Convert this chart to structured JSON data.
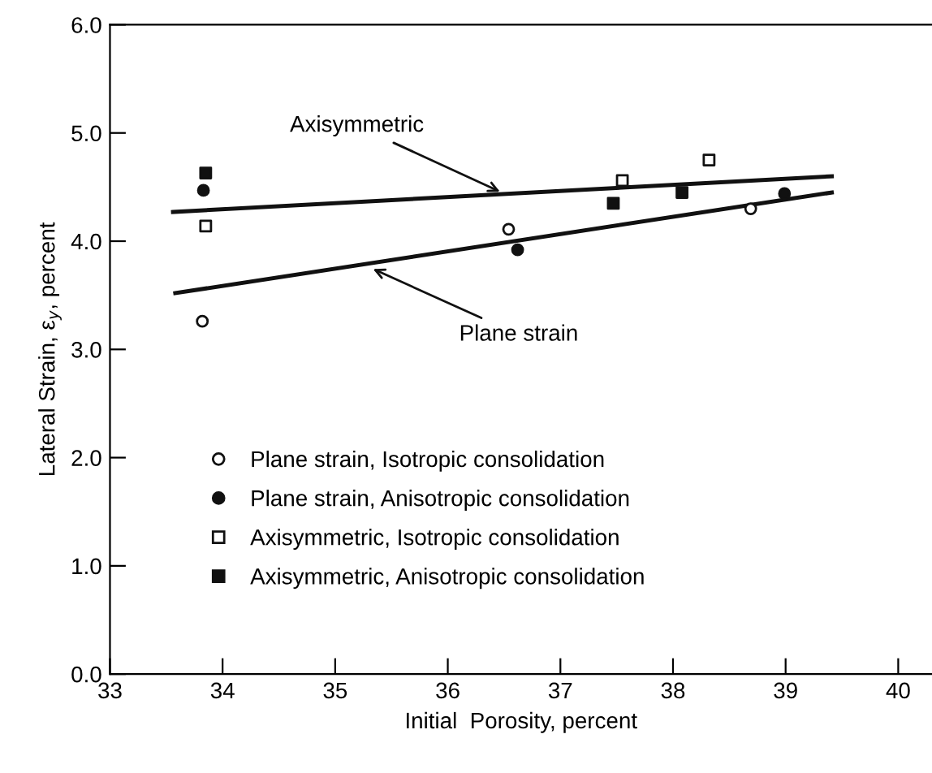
{
  "chart_data": {
    "type": "scatter",
    "xlabel": "Initial  Porosity, percent",
    "ylabel": "Lateral Strain, ε$_{y}$, percent",
    "xlim": [
      33,
      40.3
    ],
    "ylim": [
      0,
      6.0
    ],
    "xticks": [
      33,
      34,
      35,
      36,
      37,
      38,
      39,
      40
    ],
    "yticks": [
      {
        "value": 0,
        "label": "0.0"
      },
      {
        "value": 1,
        "label": "1.0"
      },
      {
        "value": 2,
        "label": "2.0"
      },
      {
        "value": 3,
        "label": "3.0"
      },
      {
        "value": 4,
        "label": "4.0"
      },
      {
        "value": 5,
        "label": "5.0"
      },
      {
        "value": 6,
        "label": "6.0"
      }
    ],
    "grid": false,
    "legend": "bottom left",
    "series": [
      {
        "name": "Plane strain, Isotropic consolidation",
        "marker": "circle",
        "color": "#ffffff",
        "x": [
          33.82,
          36.54,
          38.69
        ],
        "values": [
          3.26,
          4.11,
          4.3
        ]
      },
      {
        "name": "Plane strain, Anisotropic consolidation",
        "marker": "circle",
        "color": "#111111",
        "x": [
          33.83,
          36.62,
          38.99
        ],
        "values": [
          4.47,
          3.92,
          4.44
        ]
      },
      {
        "name": "Axisymmetric, Isotropic consolidation",
        "marker": "square",
        "color": "#ffffff",
        "x": [
          33.85,
          37.55,
          38.32
        ],
        "values": [
          4.14,
          4.56,
          4.75
        ]
      },
      {
        "name": "Axisymmetric, Anisotropic consolidation",
        "marker": "square",
        "color": "#111111",
        "x": [
          33.85,
          37.47,
          38.08
        ],
        "values": [
          4.63,
          4.35,
          4.45
        ]
      },
      {
        "type": "line",
        "marker": "none",
        "line_style": "solid",
        "color": "#111111",
        "x": [
          33.56,
          39.41
        ],
        "values": [
          4.27,
          4.6
        ]
      },
      {
        "type": "line",
        "marker": "none",
        "line_style": "solid",
        "color": "#111111",
        "x": [
          33.58,
          39.41
        ],
        "values": [
          3.52,
          4.45
        ]
      }
    ],
    "annotations": [
      {
        "text": "Axisymmetric",
        "x": 36.5,
        "y": 4.44
      },
      {
        "text": "Plane strain",
        "x": 35.3,
        "y": 3.76
      }
    ]
  }
}
